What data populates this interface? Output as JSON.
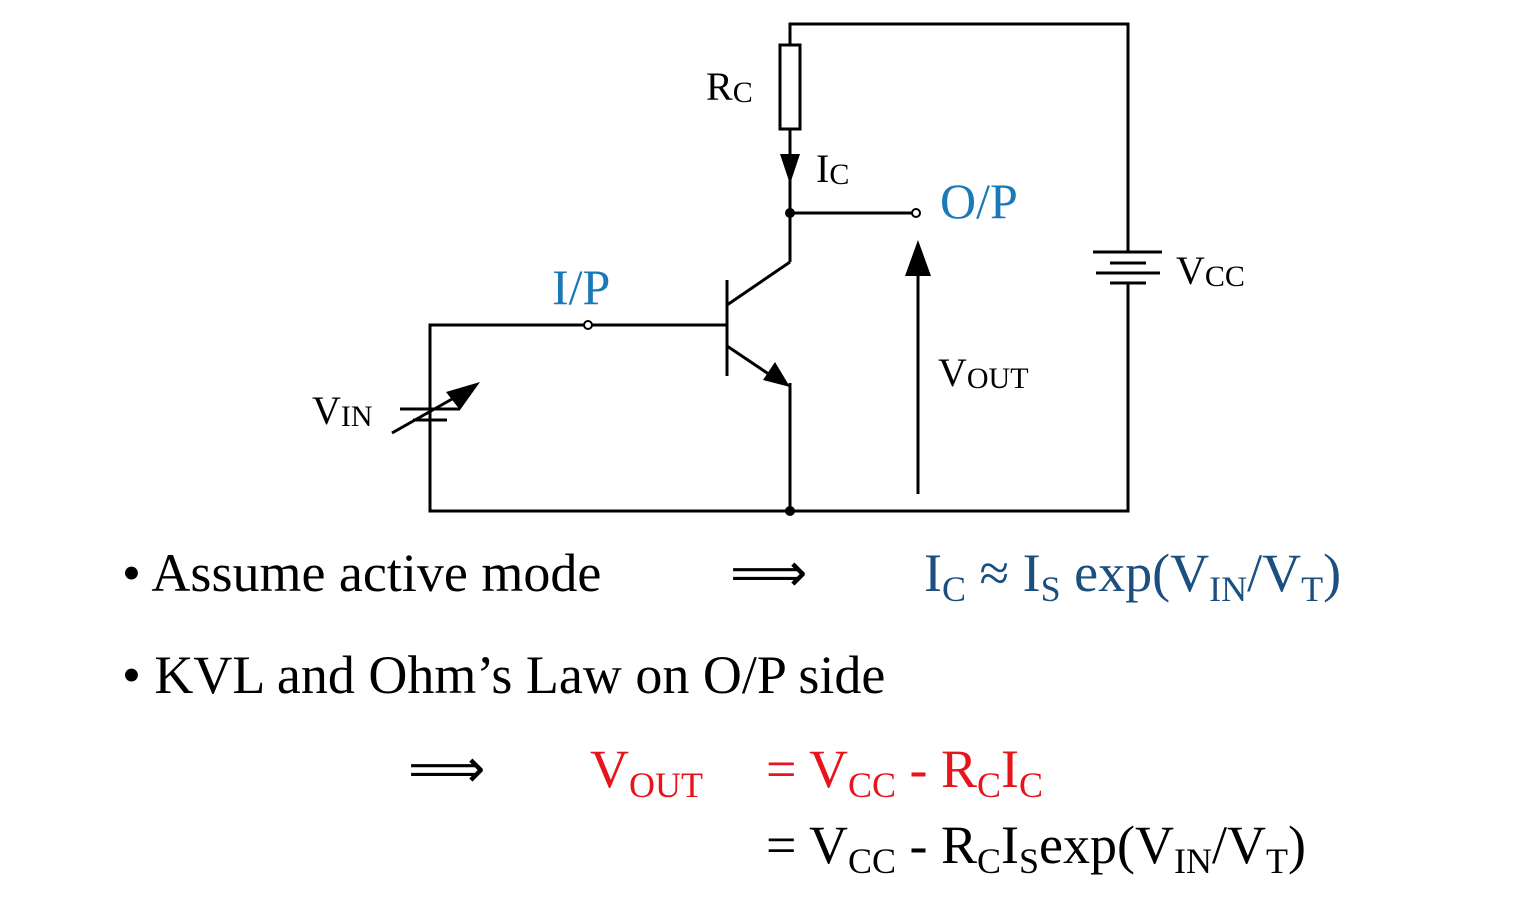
{
  "circuit": {
    "rc_label": {
      "main": "R",
      "sub": "C"
    },
    "ic_label": {
      "main": "I",
      "sub": "C"
    },
    "op_label": "O/P",
    "ip_label": "I/P",
    "vcc_label": {
      "main": "V",
      "sub": "CC"
    },
    "vout_label": {
      "main": "V",
      "sub": "OUT"
    },
    "vin_label": {
      "main": "V",
      "sub": "IN"
    }
  },
  "bullets": {
    "assume": "• Assume active mode",
    "kvl": "• KVL and Ohm’s Law on O/P side",
    "implies": "⟹"
  },
  "equations": {
    "ic_eq": {
      "i1": "I",
      "c": "C",
      "approx": " ≈ ",
      "i2": "I",
      "s": "S",
      "exp_open": " exp(V",
      "in": "IN",
      "slash": "/V",
      "t": "T",
      "close": ")"
    },
    "vout_eq": {
      "v": "V",
      "out": "OUT"
    },
    "line1": {
      "eq": "= V",
      "cc": "CC",
      "minus": " - R",
      "c1": "C",
      "i": "I",
      "c2": "C"
    },
    "line2": {
      "eq": "= V",
      "cc": "CC",
      "minus": " - R",
      "c": "C",
      "i": "I",
      "s": "S",
      "exp_open": "exp(V",
      "in": "IN",
      "slash": "/V",
      "t": "T",
      "close": ")"
    }
  }
}
